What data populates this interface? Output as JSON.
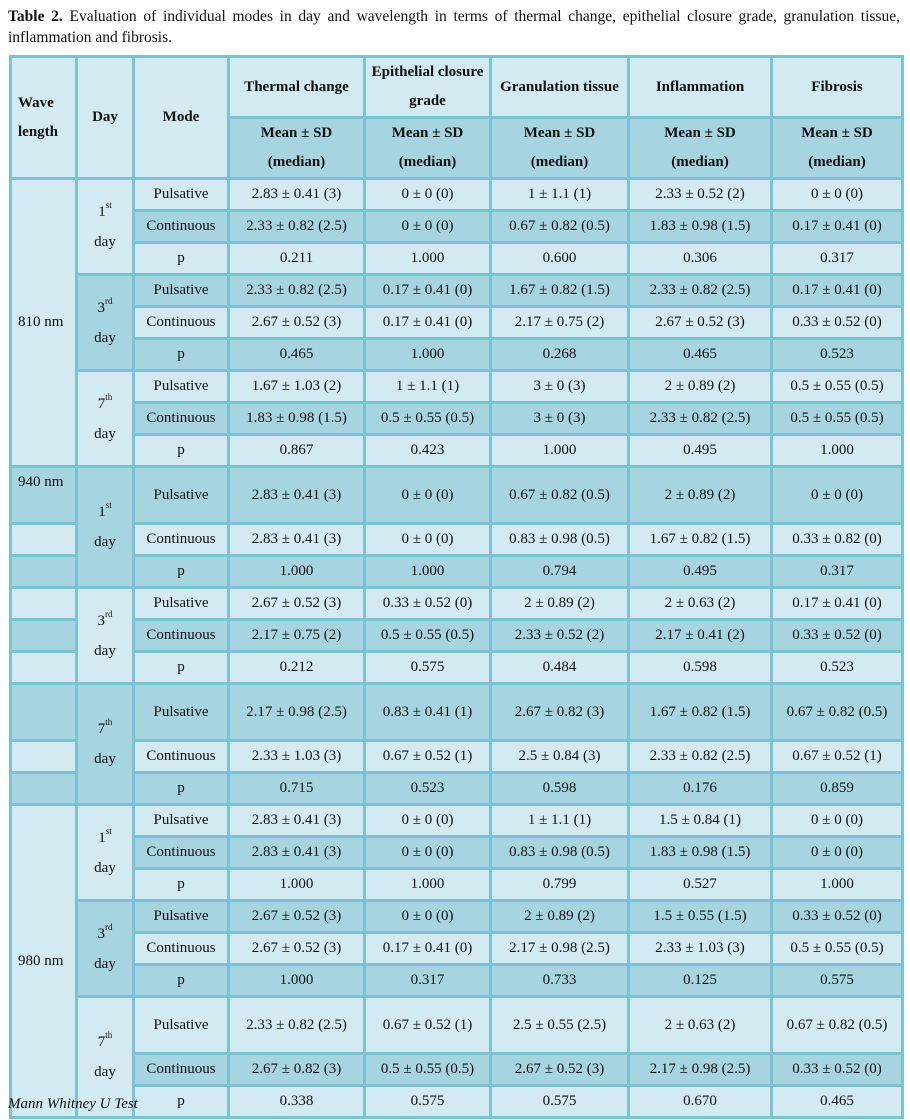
{
  "caption": {
    "label": "Table 2.",
    "text": "Evaluation of individual modes in day and wavelength in terms of thermal change, epithelial closure grade, granulation tissue, inflammation and fibrosis."
  },
  "header": {
    "wavelength": "Wave length",
    "day": "Day",
    "mode": "Mode",
    "columns": [
      "Thermal change",
      "Epithelial closure grade",
      "Granulation tissue",
      "Inflammation",
      "Fibrosis"
    ],
    "sub": "Mean ± SD (median)"
  },
  "groups": [
    {
      "wavelength": "810 nm",
      "span": true,
      "days": [
        {
          "num": "1",
          "sup": "st",
          "word": "day",
          "rows": [
            {
              "mode": "Pulsative",
              "values": [
                "2.83 ± 0.41 (3)",
                "0 ± 0 (0)",
                "1 ± 1.1 (1)",
                "2.33 ± 0.52 (2)",
                "0 ± 0 (0)"
              ]
            },
            {
              "mode": "Continuous",
              "values": [
                "2.33 ± 0.82 (2.5)",
                "0 ± 0 (0)",
                "0.67 ± 0.82 (0.5)",
                "1.83 ± 0.98 (1.5)",
                "0.17 ± 0.41 (0)"
              ]
            },
            {
              "mode": "p",
              "values": [
                "0.211",
                "1.000",
                "0.600",
                "0.306",
                "0.317"
              ]
            }
          ]
        },
        {
          "num": "3",
          "sup": "rd",
          "word": "day",
          "rows": [
            {
              "mode": "Pulsative",
              "values": [
                "2.33 ± 0.82 (2.5)",
                "0.17 ± 0.41 (0)",
                "1.67 ± 0.82 (1.5)",
                "2.33 ± 0.82 (2.5)",
                "0.17 ± 0.41 (0)"
              ]
            },
            {
              "mode": "Continuous",
              "values": [
                "2.67 ± 0.52 (3)",
                "0.17 ± 0.41 (0)",
                "2.17 ± 0.75 (2)",
                "2.67 ± 0.52 (3)",
                "0.33 ± 0.52 (0)"
              ]
            },
            {
              "mode": "p",
              "values": [
                "0.465",
                "1.000",
                "0.268",
                "0.465",
                "0.523"
              ]
            }
          ]
        },
        {
          "num": "7",
          "sup": "th",
          "word": "day",
          "rows": [
            {
              "mode": "Pulsative",
              "values": [
                "1.67 ± 1.03 (2)",
                "1 ± 1.1 (1)",
                "3 ± 0 (3)",
                "2 ± 0.89 (2)",
                "0.5 ± 0.55 (0.5)"
              ]
            },
            {
              "mode": "Continuous",
              "values": [
                "1.83 ± 0.98 (1.5)",
                "0.5 ± 0.55 (0.5)",
                "3 ± 0 (3)",
                "2.33 ± 0.82 (2.5)",
                "0.5 ± 0.55 (0.5)"
              ]
            },
            {
              "mode": "p",
              "values": [
                "0.867",
                "0.423",
                "1.000",
                "0.495",
                "1.000"
              ]
            }
          ]
        }
      ]
    },
    {
      "wavelength": "940 nm",
      "span": false,
      "days": [
        {
          "num": "1",
          "sup": "st",
          "word": "day",
          "rows": [
            {
              "mode": "Pulsative",
              "tall": true,
              "values": [
                "2.83 ± 0.41 (3)",
                "0 ± 0 (0)",
                "0.67 ± 0.82 (0.5)",
                "2 ± 0.89 (2)",
                "0 ± 0 (0)"
              ]
            },
            {
              "mode": "Continuous",
              "values": [
                "2.83 ± 0.41 (3)",
                "0 ± 0 (0)",
                "0.83 ± 0.98 (0.5)",
                "1.67 ± 0.82 (1.5)",
                "0.33 ± 0.82 (0)"
              ]
            },
            {
              "mode": "p",
              "values": [
                "1.000",
                "1.000",
                "0.794",
                "0.495",
                "0.317"
              ]
            }
          ]
        },
        {
          "num": "3",
          "sup": "rd",
          "word": "day",
          "rows": [
            {
              "mode": "Pulsative",
              "values": [
                "2.67 ± 0.52 (3)",
                "0.33 ± 0.52 (0)",
                "2 ± 0.89 (2)",
                "2 ± 0.63 (2)",
                "0.17 ± 0.41 (0)"
              ]
            },
            {
              "mode": "Continuous",
              "values": [
                "2.17 ± 0.75 (2)",
                "0.5 ± 0.55 (0.5)",
                "2.33 ± 0.52 (2)",
                "2.17 ± 0.41 (2)",
                "0.33 ± 0.52 (0)"
              ]
            },
            {
              "mode": "p",
              "values": [
                "0.212",
                "0.575",
                "0.484",
                "0.598",
                "0.523"
              ]
            }
          ]
        },
        {
          "num": "7",
          "sup": "th",
          "word": "day",
          "rows": [
            {
              "mode": "Pulsative",
              "tall": true,
              "values": [
                "2.17 ± 0.98 (2.5)",
                "0.83 ± 0.41 (1)",
                "2.67 ± 0.82 (3)",
                "1.67 ± 0.82 (1.5)",
                "0.67 ± 0.82 (0.5)"
              ]
            },
            {
              "mode": "Continuous",
              "values": [
                "2.33 ± 1.03 (3)",
                "0.67 ± 0.52 (1)",
                "2.5 ± 0.84 (3)",
                "2.33 ± 0.82 (2.5)",
                "0.67 ± 0.52 (1)"
              ]
            },
            {
              "mode": "p",
              "values": [
                "0.715",
                "0.523",
                "0.598",
                "0.176",
                "0.859"
              ]
            }
          ]
        }
      ]
    },
    {
      "wavelength": "980 nm",
      "span": true,
      "days": [
        {
          "num": "1",
          "sup": "st",
          "word": "day",
          "rows": [
            {
              "mode": "Pulsative",
              "values": [
                "2.83 ± 0.41 (3)",
                "0 ± 0 (0)",
                "1 ± 1.1 (1)",
                "1.5 ± 0.84 (1)",
                "0 ± 0 (0)"
              ]
            },
            {
              "mode": "Continuous",
              "values": [
                "2.83 ± 0.41 (3)",
                "0 ± 0 (0)",
                "0.83 ± 0.98 (0.5)",
                "1.83 ± 0.98 (1.5)",
                "0 ± 0 (0)"
              ]
            },
            {
              "mode": "p",
              "values": [
                "1.000",
                "1.000",
                "0.799",
                "0.527",
                "1.000"
              ]
            }
          ]
        },
        {
          "num": "3",
          "sup": "rd",
          "word": "day",
          "rows": [
            {
              "mode": "Pulsative",
              "values": [
                "2.67 ± 0.52 (3)",
                "0 ± 0 (0)",
                "2 ± 0.89 (2)",
                "1.5 ± 0.55 (1.5)",
                "0.33 ± 0.52 (0)"
              ]
            },
            {
              "mode": "Continuous",
              "values": [
                "2.67 ± 0.52 (3)",
                "0.17 ± 0.41 (0)",
                "2.17 ± 0.98 (2.5)",
                "2.33 ± 1.03 (3)",
                "0.5 ± 0.55 (0.5)"
              ]
            },
            {
              "mode": "p",
              "values": [
                "1.000",
                "0.317",
                "0.733",
                "0.125",
                "0.575"
              ]
            }
          ]
        },
        {
          "num": "7",
          "sup": "th",
          "word": "day",
          "rows": [
            {
              "mode": "Pulsative",
              "tall": true,
              "values": [
                "2.33 ± 0.82 (2.5)",
                "0.67 ± 0.52 (1)",
                "2.5 ± 0.55 (2.5)",
                "2 ± 0.63 (2)",
                "0.67 ± 0.82 (0.5)"
              ]
            },
            {
              "mode": "Continuous",
              "values": [
                "2.67 ± 0.82 (3)",
                "0.5 ± 0.55 (0.5)",
                "2.67 ± 0.52 (3)",
                "2.17 ± 0.98 (2.5)",
                "0.33 ± 0.52 (0)"
              ]
            },
            {
              "mode": "p",
              "values": [
                "0.338",
                "0.575",
                "0.575",
                "0.670",
                "0.465"
              ]
            }
          ]
        }
      ]
    }
  ],
  "footer": "Mann Whitney U Test"
}
